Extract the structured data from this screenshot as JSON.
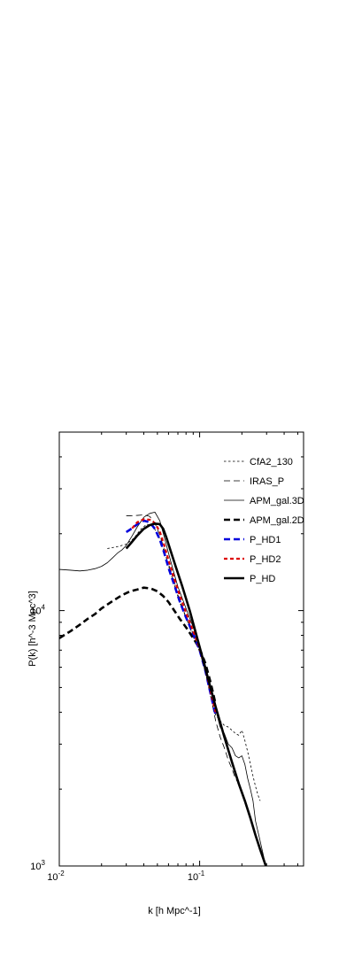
{
  "chart_data": {
    "type": "line",
    "title": "",
    "xlabel": "k [h Mpc^-1]",
    "ylabel": "P(k)  [h^-3 Mpc^3]",
    "x_scale": "log",
    "y_scale": "log",
    "xlim": [
      0.01,
      0.55
    ],
    "ylim": [
      1000,
      50000
    ],
    "x_ticks": [
      {
        "value": 0.01,
        "base": "10",
        "exp": "-2"
      },
      {
        "value": 0.1,
        "base": "10",
        "exp": "-1"
      }
    ],
    "y_ticks": [
      {
        "value": 1000,
        "base": "10",
        "exp": "3"
      },
      {
        "value": 10000,
        "base": "10",
        "exp": "4"
      }
    ],
    "grid": false,
    "legend_position": "top-right",
    "series": [
      {
        "name": "CfA2_130",
        "color": "#000000",
        "style": "thin-dotted",
        "x": [
          0.022,
          0.026,
          0.03,
          0.034,
          0.038,
          0.042,
          0.046,
          0.05,
          0.055,
          0.06,
          0.066,
          0.072,
          0.08,
          0.09,
          0.1,
          0.11,
          0.12,
          0.13,
          0.14,
          0.15,
          0.16,
          0.17,
          0.18,
          0.19,
          0.2,
          0.21,
          0.22,
          0.23,
          0.24,
          0.25,
          0.26,
          0.27
        ],
        "y": [
          17500,
          17800,
          18200,
          19200,
          20800,
          21800,
          21400,
          20200,
          17400,
          15200,
          13000,
          11000,
          9400,
          7900,
          6900,
          5800,
          4600,
          3900,
          3700,
          3550,
          3500,
          3400,
          3300,
          3250,
          3400,
          3100,
          2800,
          2500,
          2250,
          2050,
          1900,
          1800
        ]
      },
      {
        "name": "IRAS_P",
        "color": "#000000",
        "style": "thin-dashed",
        "x": [
          0.03,
          0.032,
          0.036,
          0.04,
          0.044,
          0.048,
          0.052,
          0.056,
          0.06,
          0.066,
          0.072,
          0.08,
          0.09,
          0.1,
          0.11,
          0.12,
          0.13,
          0.14,
          0.15,
          0.16,
          0.17,
          0.18,
          0.19
        ],
        "y": [
          23500,
          23500,
          23600,
          23700,
          23400,
          22000,
          19800,
          17300,
          15000,
          12600,
          10800,
          9400,
          8100,
          7000,
          5700,
          4600,
          3700,
          3200,
          2900,
          2600,
          2400,
          2200,
          2100
        ]
      },
      {
        "name": "APM_gal.3D",
        "color": "#000000",
        "style": "thin-solid",
        "x": [
          0.01,
          0.012,
          0.014,
          0.016,
          0.018,
          0.02,
          0.022,
          0.024,
          0.026,
          0.028,
          0.03,
          0.033,
          0.036,
          0.04,
          0.044,
          0.048,
          0.052,
          0.056,
          0.06,
          0.065,
          0.07,
          0.08,
          0.09,
          0.1,
          0.11,
          0.12,
          0.13,
          0.14,
          0.15,
          0.16,
          0.17,
          0.18,
          0.19,
          0.2,
          0.21,
          0.22,
          0.23,
          0.24,
          0.25,
          0.27,
          0.29
        ],
        "y": [
          14500,
          14400,
          14300,
          14400,
          14600,
          14900,
          15400,
          16100,
          16800,
          17300,
          18000,
          19600,
          21300,
          23200,
          24000,
          24300,
          22500,
          19400,
          16800,
          14300,
          12400,
          10200,
          8600,
          7300,
          6100,
          5000,
          4100,
          3500,
          3300,
          3000,
          2900,
          2700,
          2650,
          2700,
          2500,
          2200,
          2000,
          1800,
          1500,
          1250,
          1050
        ]
      },
      {
        "name": "APM_gal.2D",
        "color": "#000000",
        "style": "thick-dashed",
        "x": [
          0.01,
          0.012,
          0.014,
          0.016,
          0.018,
          0.02,
          0.024,
          0.028,
          0.032,
          0.036,
          0.04,
          0.045,
          0.05,
          0.055,
          0.06,
          0.066,
          0.072,
          0.08,
          0.09,
          0.1,
          0.11,
          0.12,
          0.13
        ],
        "y": [
          7800,
          8300,
          8800,
          9300,
          9700,
          10200,
          10900,
          11500,
          11900,
          12100,
          12300,
          12200,
          11900,
          11400,
          10800,
          10000,
          9300,
          8600,
          7800,
          7100,
          6200,
          5200,
          4300
        ]
      },
      {
        "name": "P_HD1",
        "color": "#0000dd",
        "style": "thick-dashed",
        "x": [
          0.03,
          0.033,
          0.036,
          0.04,
          0.044,
          0.048,
          0.052,
          0.056,
          0.06,
          0.066,
          0.072,
          0.08,
          0.09,
          0.1,
          0.11,
          0.12,
          0.13
        ],
        "y": [
          20300,
          21000,
          21800,
          22500,
          22200,
          20900,
          19000,
          16800,
          14700,
          12600,
          10900,
          9400,
          8100,
          7000,
          5800,
          4700,
          3900
        ]
      },
      {
        "name": "P_HD2",
        "color": "#dd0000",
        "style": "thick-dotted",
        "x": [
          0.033,
          0.036,
          0.04,
          0.044,
          0.048,
          0.052,
          0.056,
          0.06,
          0.066,
          0.072,
          0.08,
          0.09,
          0.1,
          0.11,
          0.12,
          0.13
        ],
        "y": [
          21000,
          22200,
          22800,
          22700,
          22000,
          20400,
          18000,
          15800,
          13300,
          11500,
          9800,
          8300,
          7100,
          5900,
          4800,
          4000
        ]
      },
      {
        "name": "P_HD",
        "color": "#000000",
        "style": "thick-solid",
        "x": [
          0.03,
          0.033,
          0.036,
          0.04,
          0.044,
          0.048,
          0.052,
          0.055,
          0.058,
          0.062,
          0.068,
          0.075,
          0.085,
          0.1,
          0.115,
          0.13,
          0.15,
          0.17,
          0.19,
          0.21,
          0.23,
          0.25,
          0.27,
          0.3
        ],
        "y": [
          17500,
          18600,
          19700,
          20900,
          21600,
          21900,
          21800,
          20900,
          19300,
          17200,
          14700,
          12500,
          10000,
          7200,
          5400,
          4200,
          3200,
          2550,
          2100,
          1800,
          1540,
          1320,
          1160,
          980
        ]
      }
    ]
  }
}
